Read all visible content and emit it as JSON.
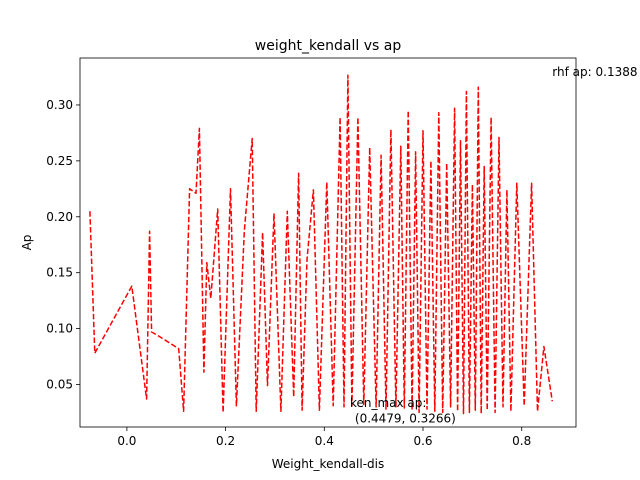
{
  "chart_data": {
    "type": "line",
    "title": "weight_kendall vs ap",
    "xlabel": "Weight_kendall-dis",
    "ylabel": "Ap",
    "xlim": [
      -0.095,
      0.91
    ],
    "ylim": [
      0.012,
      0.342
    ],
    "x_ticks": [
      0.0,
      0.2,
      0.4,
      0.6,
      0.8
    ],
    "x_tick_labels": [
      "0.0",
      "0.2",
      "0.4",
      "0.6",
      "0.8"
    ],
    "y_ticks": [
      0.05,
      0.1,
      0.15,
      0.2,
      0.25,
      0.3
    ],
    "y_tick_labels": [
      "0.05",
      "0.10",
      "0.15",
      "0.20",
      "0.25",
      "0.30"
    ],
    "grid": false,
    "series_color": "#ff0000",
    "line_style": "dashed",
    "annotations": [
      {
        "text": "rhf ap: 0.1388",
        "x": 0.862,
        "y": 0.326
      },
      {
        "text": "ken_max ap:",
        "x": 0.452,
        "y": 0.03
      },
      {
        "text": "(0.4479, 0.3266)",
        "x": 0.462,
        "y": 0.016
      }
    ],
    "series": [
      {
        "x": [
          -0.075,
          -0.065,
          0.01,
          0.04,
          0.046,
          0.05,
          0.062,
          0.105,
          0.115,
          0.127,
          0.14,
          0.147,
          0.156,
          0.162,
          0.17,
          0.184,
          0.195,
          0.21,
          0.222,
          0.238,
          0.254,
          0.262,
          0.275,
          0.285,
          0.298,
          0.312,
          0.325,
          0.338,
          0.348,
          0.355,
          0.365,
          0.378,
          0.39,
          0.405,
          0.418,
          0.432,
          0.44,
          0.4479,
          0.456,
          0.468,
          0.48,
          0.492,
          0.505,
          0.515,
          0.525,
          0.535,
          0.545,
          0.555,
          0.562,
          0.57,
          0.578,
          0.585,
          0.592,
          0.6,
          0.608,
          0.616,
          0.624,
          0.632,
          0.64,
          0.648,
          0.656,
          0.664,
          0.67,
          0.676,
          0.682,
          0.688,
          0.694,
          0.7,
          0.706,
          0.712,
          0.718,
          0.724,
          0.73,
          0.738,
          0.746,
          0.754,
          0.762,
          0.77,
          0.778,
          0.79,
          0.805,
          0.82,
          0.832,
          0.845,
          0.862
        ],
        "y": [
          0.205,
          0.078,
          0.138,
          0.037,
          0.187,
          0.097,
          0.094,
          0.082,
          0.026,
          0.225,
          0.221,
          0.279,
          0.061,
          0.159,
          0.127,
          0.207,
          0.025,
          0.225,
          0.031,
          0.187,
          0.27,
          0.026,
          0.186,
          0.049,
          0.203,
          0.026,
          0.205,
          0.039,
          0.239,
          0.027,
          0.162,
          0.224,
          0.027,
          0.231,
          0.031,
          0.289,
          0.03,
          0.3266,
          0.031,
          0.289,
          0.032,
          0.262,
          0.03,
          0.255,
          0.028,
          0.278,
          0.03,
          0.263,
          0.029,
          0.295,
          0.027,
          0.258,
          0.025,
          0.277,
          0.028,
          0.25,
          0.026,
          0.293,
          0.025,
          0.248,
          0.03,
          0.297,
          0.026,
          0.268,
          0.024,
          0.312,
          0.025,
          0.229,
          0.027,
          0.316,
          0.024,
          0.245,
          0.027,
          0.289,
          0.025,
          0.271,
          0.03,
          0.224,
          0.026,
          0.23,
          0.031,
          0.23,
          0.026,
          0.084,
          0.035
        ]
      }
    ]
  }
}
